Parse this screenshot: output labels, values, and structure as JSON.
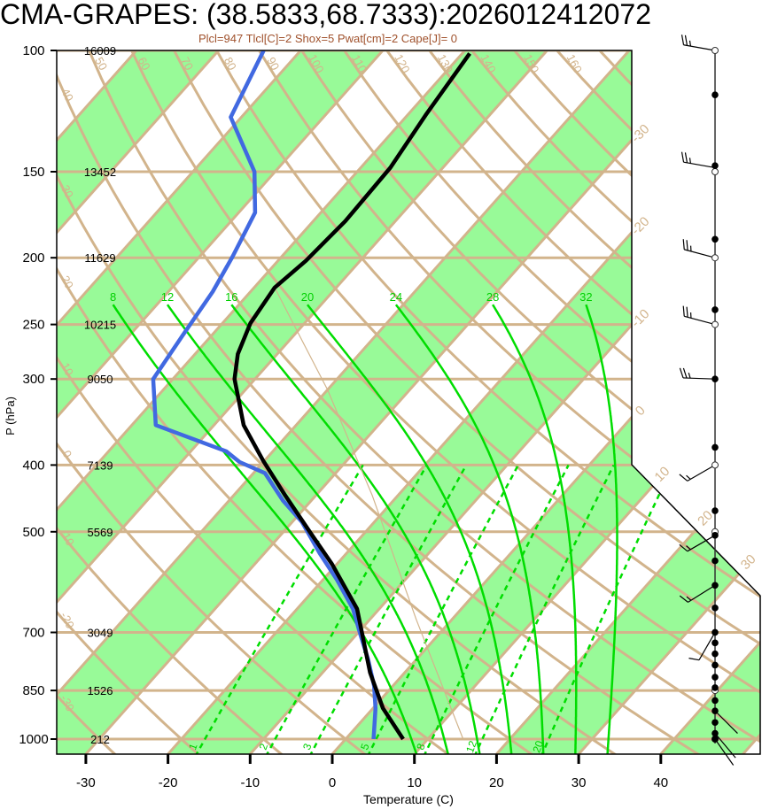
{
  "title": "CMA-GRAPES: (38.5833,68.7333):2026012412072",
  "subtitle": "Plcl=947 Tlcl[C]=2 Shox=5 Pwat[cm]=2 Cape[J]= 0",
  "colors": {
    "band_fill": "#98fa98",
    "grid_tan": "#d2b48c",
    "moist_green": "#00dd00",
    "temperature": "#000000",
    "dewpoint": "#4169e1",
    "subtitle": "#a0522d"
  },
  "chart_data": {
    "type": "line",
    "subtype": "skew-T log-P",
    "title": "CMA-GRAPES: (38.5833,68.7333):2026012412072",
    "xlabel": "Temperature (C)",
    "ylabel": "P (hPa)",
    "xlim": [
      -33.5,
      52
    ],
    "ylim": [
      1050,
      100
    ],
    "x_ticks": [
      -30,
      -20,
      -10,
      0,
      10,
      20,
      30,
      40
    ],
    "y_ticks": [
      100,
      150,
      200,
      250,
      300,
      400,
      500,
      700,
      850,
      1000
    ],
    "heights_m": [
      "16009",
      "13452",
      "11629",
      "10215",
      "9050",
      "7139",
      "5569",
      "3049",
      "1526",
      "212"
    ],
    "series": [
      {
        "name": "temperature",
        "pressure": [
          1000,
          902,
          801,
          647,
          557,
          500,
          443,
          394,
          350,
          300,
          276,
          249,
          221,
          202,
          177,
          148,
          124,
          101
        ],
        "values": [
          7.0,
          1.2,
          -4.2,
          -12.7,
          -20.6,
          -26.8,
          -33.7,
          -40.2,
          -46.4,
          -52.5,
          -54.8,
          -56.6,
          -57.5,
          -56.6,
          -56.1,
          -56.4,
          -57.8,
          -59.1
        ]
      },
      {
        "name": "dewpoint",
        "pressure": [
          1000,
          902,
          837,
          766,
          707,
          647,
          587,
          537,
          484,
          450,
          411,
          396,
          382,
          350,
          300,
          260,
          224,
          199,
          172,
          150,
          125,
          100
        ],
        "values": [
          3.4,
          0.3,
          -2.3,
          -5.9,
          -9.4,
          -13.2,
          -18.3,
          -23.3,
          -28.8,
          -33.5,
          -38.6,
          -42.9,
          -45.7,
          -57.1,
          -62.4,
          -63.5,
          -64.6,
          -66.0,
          -68.0,
          -72.5,
          -81.3,
          -84.5
        ]
      },
      {
        "name": "parcel",
        "pressure": [
          1000,
          671,
          443,
          311,
          221
        ],
        "values": [
          14.3,
          -4.3,
          -23.1,
          -40.0,
          -57.5
        ]
      }
    ],
    "isotherm_labels": [
      -30,
      -20,
      -10,
      0,
      10,
      20,
      30
    ],
    "dry_adiabat_labels": [
      -30,
      -20,
      -10,
      0,
      10,
      20,
      30,
      40,
      50,
      60,
      70,
      80,
      90,
      100,
      110,
      120,
      130,
      140,
      150,
      160
    ],
    "moist_adiabat_labels": [
      8,
      12,
      16,
      20,
      24,
      28,
      32
    ],
    "mixing_ratio_labels": [
      1,
      2,
      3,
      5,
      8,
      12,
      20
    ],
    "wind": [
      {
        "p": 100,
        "dir": 280,
        "kt": 25
      },
      {
        "p": 148,
        "dir": 280,
        "kt": 25
      },
      {
        "p": 200,
        "dir": 285,
        "kt": 25
      },
      {
        "p": 250,
        "dir": 285,
        "kt": 25
      },
      {
        "p": 300,
        "dir": 272,
        "kt": 25
      },
      {
        "p": 400,
        "dir": 240,
        "kt": 15
      },
      {
        "p": 506,
        "dir": 240,
        "kt": 15
      },
      {
        "p": 598,
        "dir": 238,
        "kt": 15
      },
      {
        "p": 700,
        "dir": 210,
        "kt": 10
      },
      {
        "p": 910,
        "dir": 135,
        "kt": 5
      },
      {
        "p": 981,
        "dir": 140,
        "kt": 5
      },
      {
        "p": 1000,
        "dir": 145,
        "kt": 5
      }
    ],
    "wind_levels_filled": [
      116,
      147,
      188,
      238,
      300,
      377,
      466,
      506,
      551,
      598,
      645,
      700,
      725,
      752,
      781,
      813,
      842,
      879,
      910,
      946,
      981,
      1000
    ],
    "wind_levels_open": [
      100,
      150,
      200,
      250,
      400,
      500,
      850,
      1000
    ]
  }
}
